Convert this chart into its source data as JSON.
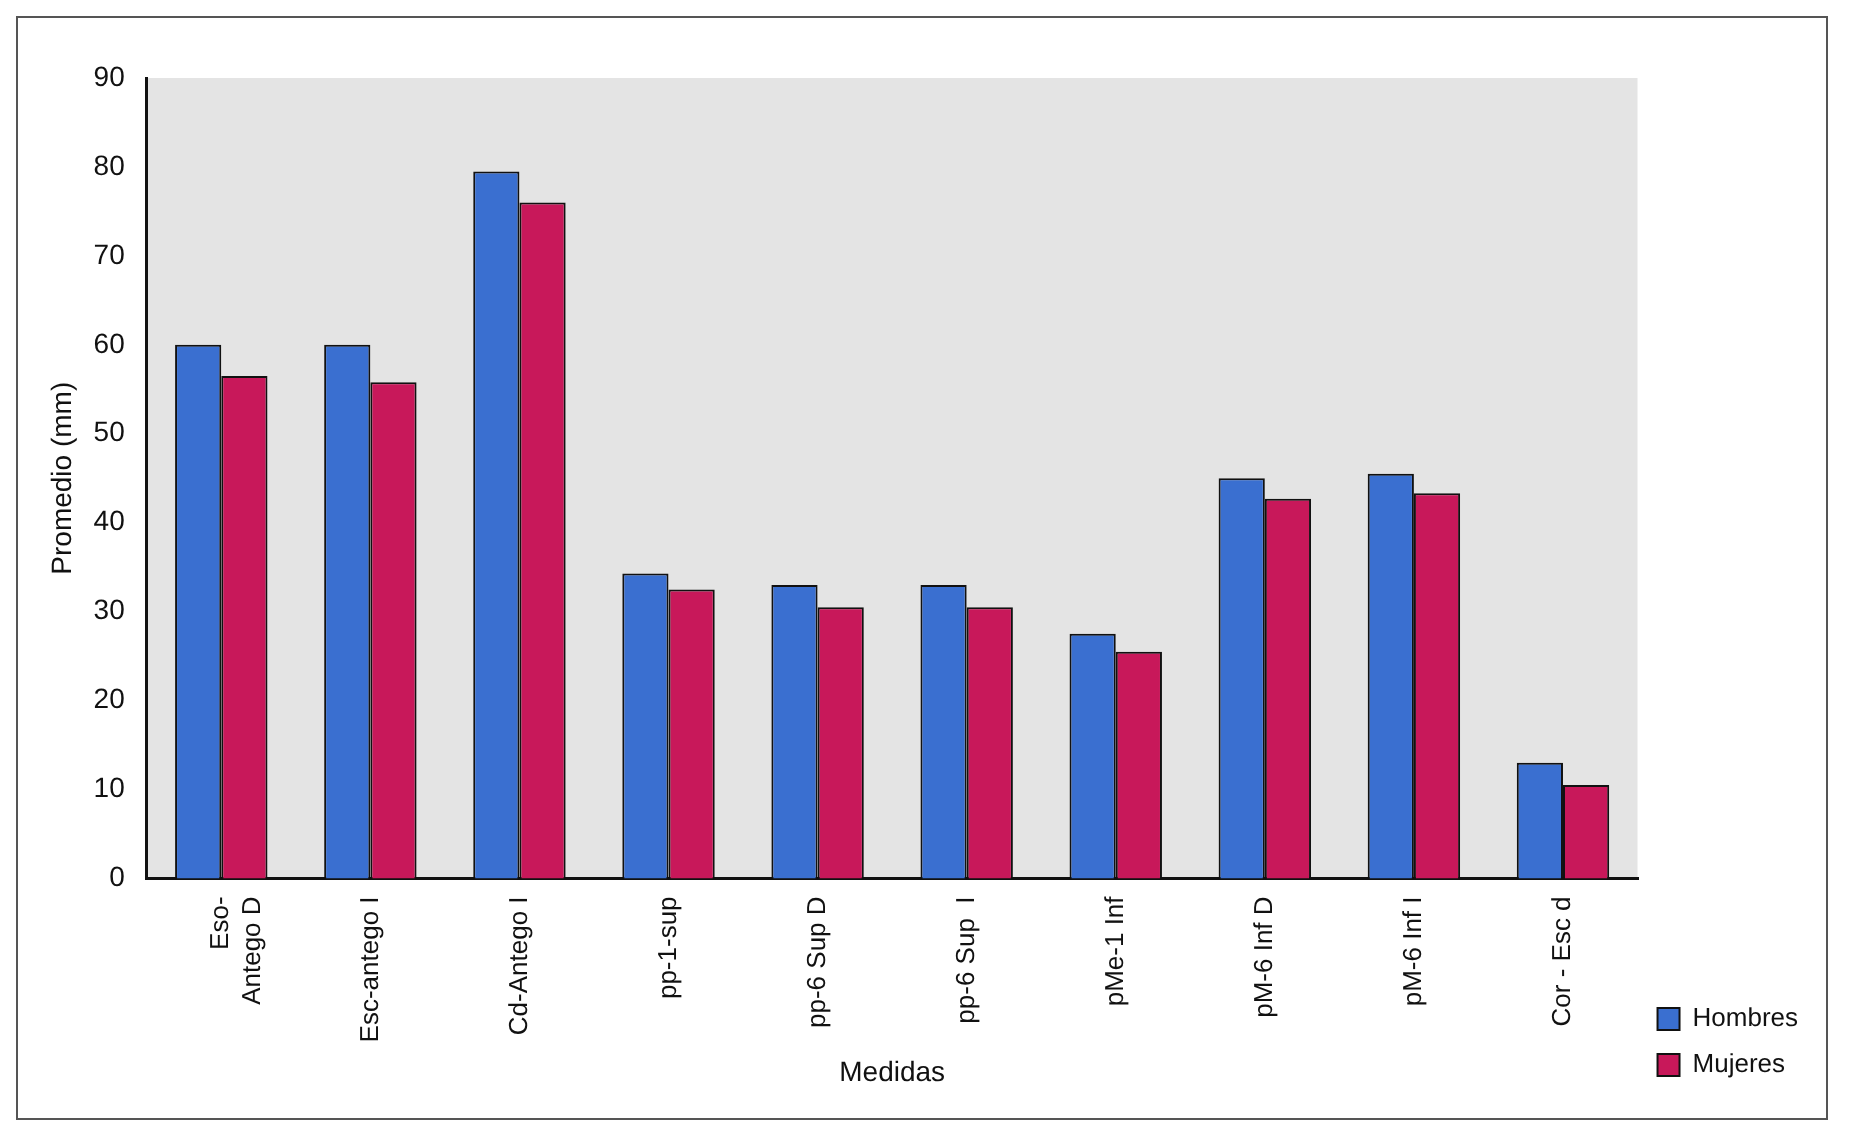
{
  "chart_data": {
    "type": "bar",
    "xlabel": "Medidas",
    "ylabel": "Promedio (mm)",
    "categories": [
      "Eso-\nAntego D",
      "Esc-antego I",
      "Cd-Antego I",
      "pp-1-sup",
      "pp-6 Sup D",
      "pp-6 Sup  I",
      "pMe-1 Inf",
      "pM-6 Inf D",
      "pM-6 Inf I",
      "Cor - Esc d"
    ],
    "series": [
      {
        "name": "Hombres",
        "color": "#3a6fd0",
        "values": [
          60,
          60,
          79.5,
          34.3,
          33,
          33,
          27.5,
          45,
          45.5,
          13
        ]
      },
      {
        "name": "Mujeres",
        "color": "#c8185a",
        "values": [
          56.5,
          55.8,
          76,
          32.5,
          30.5,
          30.5,
          25.5,
          42.7,
          43.3,
          10.5
        ]
      }
    ],
    "ylim": [
      0,
      90
    ],
    "yticks": [
      0,
      10,
      20,
      30,
      40,
      50,
      60,
      70,
      80,
      90
    ],
    "grid": false,
    "legend": "right"
  }
}
